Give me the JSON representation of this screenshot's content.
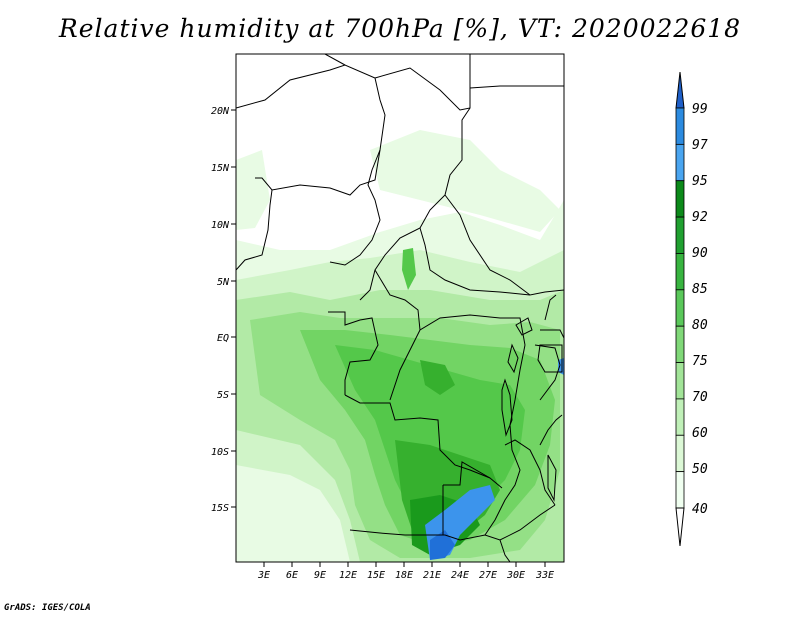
{
  "title": "Relative humidity at 700hPa [%], VT: 2020022618",
  "credit": "GrADS: IGES/COLA",
  "map": {
    "lat_labels": [
      "20N",
      "15N",
      "10N",
      "5N",
      "EQ",
      "5S",
      "10S",
      "15S"
    ],
    "lon_labels": [
      "3E",
      "6E",
      "9E",
      "12E",
      "15E",
      "18E",
      "21E",
      "24E",
      "27E",
      "30E",
      "33E"
    ]
  },
  "colorbar": {
    "labels": [
      "99",
      "97",
      "95",
      "92",
      "90",
      "85",
      "80",
      "75",
      "70",
      "60",
      "50",
      "40"
    ],
    "colors": [
      "#1e5fc8",
      "#2c8be0",
      "#4aa5f0",
      "#0c8a1a",
      "#20a030",
      "#38b440",
      "#5ac85a",
      "#80d878",
      "#a2e498",
      "#c0f0b8",
      "#dcf8d6",
      "#f0fff0"
    ]
  }
}
